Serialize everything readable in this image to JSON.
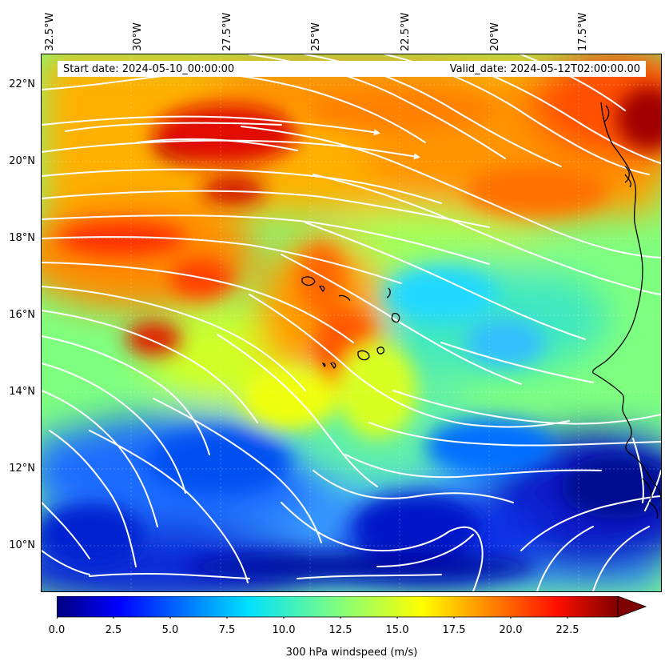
{
  "map": {
    "title_start": "Start date: 2024-05-10_00:00:00",
    "title_valid": "Valid_date: 2024-05-12T02:00:00.00",
    "extent": {
      "lon_min": -32.5,
      "lon_max": -15.2,
      "lat_min": 8.9,
      "lat_max": 22.8
    },
    "lon_labels": [
      "32.5°W",
      "30°W",
      "27.5°W",
      "25°W",
      "22.5°W",
      "20°W",
      "17.5°W"
    ],
    "lon_values": [
      -32.5,
      -30,
      -27.5,
      -25,
      -22.5,
      -20,
      -17.5
    ],
    "lat_labels": [
      "22°N",
      "20°N",
      "18°N",
      "16°N",
      "14°N",
      "12°N",
      "10°N"
    ],
    "lat_values": [
      22,
      20,
      18,
      16,
      14,
      12,
      10
    ],
    "field": "300 hPa windspeed",
    "streamline_color": "#ffffff",
    "coastline_color": "#000000",
    "colorbar": {
      "label": "300 hPa windspeed (m/s)",
      "tick_labels": [
        "0.0",
        "2.5",
        "5.0",
        "7.5",
        "10.0",
        "12.5",
        "15.0",
        "17.5",
        "20.0",
        "22.5"
      ],
      "tick_values": [
        0,
        2.5,
        5,
        7.5,
        10,
        12.5,
        15,
        17.5,
        20,
        22.5
      ],
      "vmin": 0,
      "vmax": 25,
      "extend": "max",
      "colormap": "jet"
    }
  }
}
